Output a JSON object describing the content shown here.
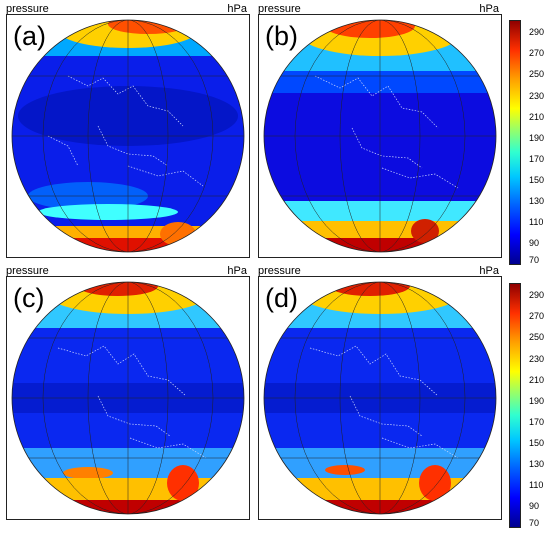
{
  "panels": [
    {
      "tag": "(a)",
      "variable": "pressure",
      "unit": "hPa"
    },
    {
      "tag": "(b)",
      "variable": "pressure",
      "unit": "hPa"
    },
    {
      "tag": "(c)",
      "variable": "pressure",
      "unit": "hPa"
    },
    {
      "tag": "(d)",
      "variable": "pressure",
      "unit": "hPa"
    }
  ],
  "colorbars": [
    {
      "ticks": [
        "290",
        "270",
        "250",
        "230",
        "210",
        "190",
        "170",
        "150",
        "130",
        "110",
        "90",
        "70"
      ]
    },
    {
      "ticks": [
        "290",
        "270",
        "250",
        "230",
        "210",
        "190",
        "170",
        "150",
        "130",
        "110",
        "90",
        "70"
      ]
    }
  ],
  "colors": {
    "low": "#00008f",
    "mid_low": "#0000ff",
    "mid": "#00c8ff",
    "mid_high": "#ffff00",
    "high": "#8f0000",
    "coastline": "#cfd8ff"
  }
}
